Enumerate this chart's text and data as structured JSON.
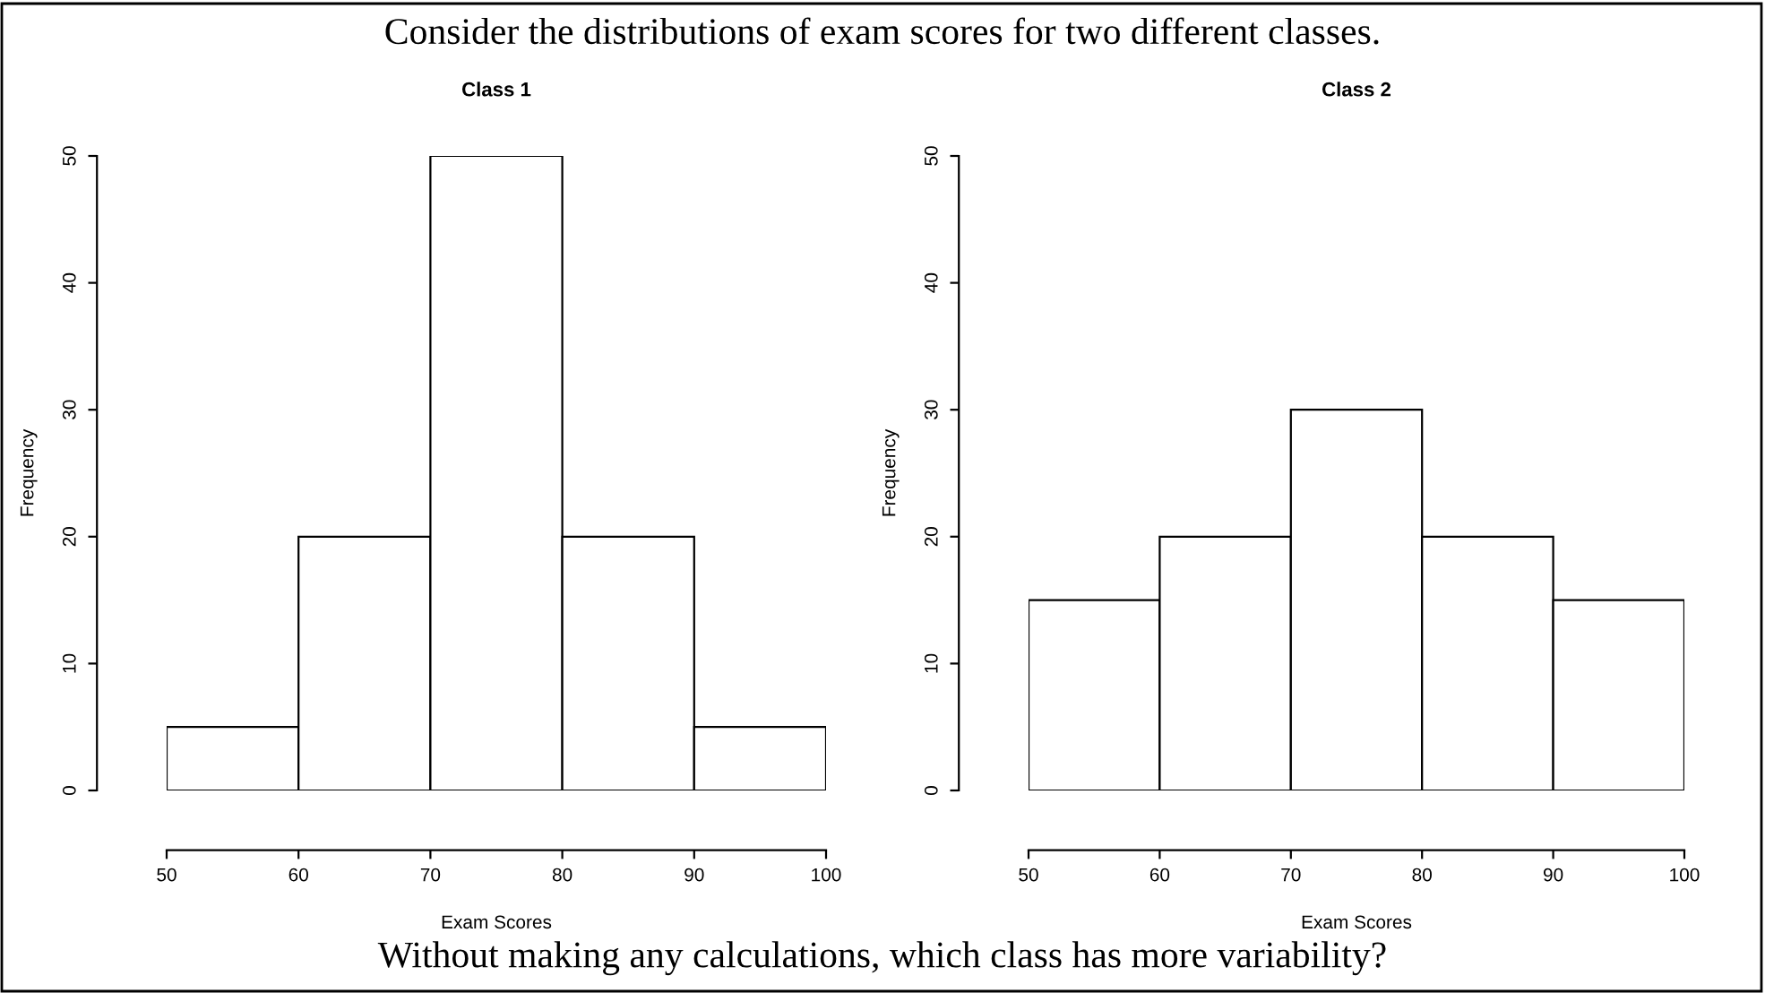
{
  "chart_data": [
    {
      "type": "histogram",
      "title": "Class 1",
      "xlabel": "Exam Scores",
      "ylabel": "Frequency",
      "bins": [
        50,
        60,
        70,
        80,
        90,
        100
      ],
      "values": [
        5,
        20,
        50,
        20,
        5
      ],
      "color": "#ffffff",
      "xlim": [
        50,
        100
      ],
      "ylim": [
        0,
        50
      ],
      "xticks": [
        50,
        60,
        70,
        80,
        90,
        100
      ],
      "yticks": [
        0,
        10,
        20,
        30,
        40,
        50
      ],
      "grid": false,
      "annotations": [
        "Consider the distributions of exam scores for two different classes."
      ]
    },
    {
      "type": "histogram",
      "title": "Class 2",
      "xlabel": "Exam Scores",
      "ylabel": "Frequency",
      "bins": [
        50,
        60,
        70,
        80,
        90,
        100
      ],
      "values": [
        15,
        20,
        30,
        20,
        15
      ],
      "color": "#ffffff",
      "xlim": [
        50,
        100
      ],
      "ylim": [
        0,
        50
      ],
      "xticks": [
        50,
        60,
        70,
        80,
        90,
        100
      ],
      "yticks": [
        0,
        10,
        20,
        30,
        40,
        50
      ],
      "grid": false,
      "annotations": [
        "Without making any calculations, which class has more variability?"
      ]
    }
  ]
}
